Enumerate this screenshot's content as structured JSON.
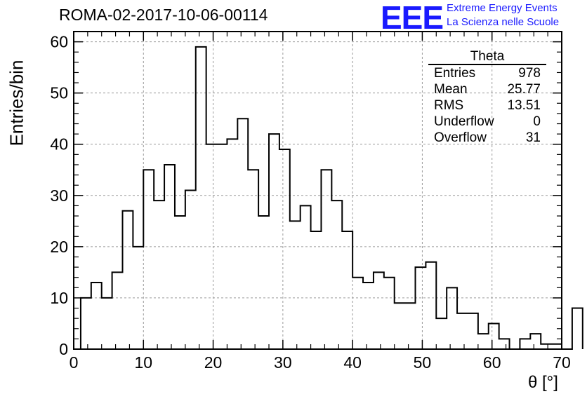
{
  "header": {
    "run_title": "ROMA-02-2017-10-06-00114",
    "logo_text": "EEE",
    "logo_line1": "Extreme Energy Events",
    "logo_line2": "La Scienza nelle Scuole",
    "logo_color": "#1a1aff"
  },
  "stats": {
    "title": "Theta",
    "rows": [
      {
        "label": "Entries",
        "value": "978"
      },
      {
        "label": "Mean",
        "value": "25.77"
      },
      {
        "label": "RMS",
        "value": "13.51"
      },
      {
        "label": "Underflow",
        "value": "0"
      },
      {
        "label": "Overflow",
        "value": "31"
      }
    ]
  },
  "chart_data": {
    "type": "bar",
    "histogram": "step",
    "xlabel": "θ [°]",
    "ylabel": "Entries/bin",
    "xlim": [
      0,
      70
    ],
    "ylim": [
      0,
      62
    ],
    "grid": true,
    "bin_edges_start": 1,
    "bin_width": 1.5,
    "x_ticks": [
      0,
      10,
      20,
      30,
      40,
      50,
      60,
      70
    ],
    "y_ticks": [
      0,
      10,
      20,
      30,
      40,
      50,
      60
    ],
    "values": [
      10,
      13,
      10,
      15,
      27,
      20,
      35,
      29,
      36,
      26,
      31,
      59,
      40,
      40,
      41,
      45,
      35,
      26,
      42,
      39,
      25,
      28,
      23,
      35,
      29,
      23,
      14,
      13,
      15,
      14,
      9,
      9,
      16,
      17,
      6,
      12,
      7,
      7,
      3,
      5,
      2,
      0,
      2,
      3,
      1,
      1,
      0,
      8
    ]
  }
}
